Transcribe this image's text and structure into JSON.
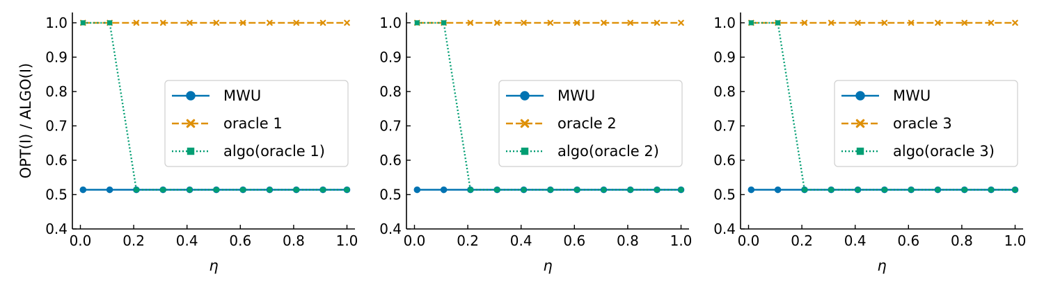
{
  "chart_data": [
    {
      "type": "line",
      "xlabel": "η",
      "ylabel": "OPT(I) / ALGO(I)",
      "xlim": [
        -0.03,
        1.03
      ],
      "ylim": [
        0.4,
        1.03
      ],
      "xticks": [
        0.0,
        0.2,
        0.4,
        0.6,
        0.8,
        1.0
      ],
      "xtick_labels": [
        "0.0",
        "0.2",
        "0.4",
        "0.6",
        "0.8",
        "1.0"
      ],
      "yticks": [
        0.4,
        0.5,
        0.6,
        0.7,
        0.8,
        0.9,
        1.0
      ],
      "ytick_labels": [
        "0.4",
        "0.5",
        "0.6",
        "0.7",
        "0.8",
        "0.9",
        "1.0"
      ],
      "grid": false,
      "legend_position": "center-right",
      "x": [
        0.01,
        0.11,
        0.21,
        0.31,
        0.41,
        0.51,
        0.61,
        0.71,
        0.81,
        0.91,
        1.0
      ],
      "series": [
        {
          "name": "MWU",
          "color": "#0173b2",
          "style": "solid",
          "marker": "circle",
          "values": [
            0.514,
            0.514,
            0.514,
            0.514,
            0.514,
            0.514,
            0.514,
            0.514,
            0.514,
            0.514,
            0.514
          ]
        },
        {
          "name": "oracle 1",
          "color": "#de8f05",
          "style": "dashed",
          "marker": "x",
          "values": [
            1.0,
            1.0,
            1.0,
            1.0,
            1.0,
            1.0,
            1.0,
            1.0,
            1.0,
            1.0,
            1.0
          ]
        },
        {
          "name": "algo(oracle 1)",
          "color": "#029e73",
          "style": "dotted",
          "marker": "square",
          "values": [
            1.0,
            1.0,
            0.514,
            0.514,
            0.514,
            0.514,
            0.514,
            0.514,
            0.514,
            0.514,
            0.514
          ]
        }
      ]
    },
    {
      "type": "line",
      "xlabel": "η",
      "ylabel": "",
      "xlim": [
        -0.03,
        1.03
      ],
      "ylim": [
        0.4,
        1.03
      ],
      "xticks": [
        0.0,
        0.2,
        0.4,
        0.6,
        0.8,
        1.0
      ],
      "xtick_labels": [
        "0.0",
        "0.2",
        "0.4",
        "0.6",
        "0.8",
        "1.0"
      ],
      "yticks": [
        0.4,
        0.5,
        0.6,
        0.7,
        0.8,
        0.9,
        1.0
      ],
      "ytick_labels": [
        "0.4",
        "0.5",
        "0.6",
        "0.7",
        "0.8",
        "0.9",
        "1.0"
      ],
      "grid": false,
      "legend_position": "center-right",
      "x": [
        0.01,
        0.11,
        0.21,
        0.31,
        0.41,
        0.51,
        0.61,
        0.71,
        0.81,
        0.91,
        1.0
      ],
      "series": [
        {
          "name": "MWU",
          "color": "#0173b2",
          "style": "solid",
          "marker": "circle",
          "values": [
            0.514,
            0.514,
            0.514,
            0.514,
            0.514,
            0.514,
            0.514,
            0.514,
            0.514,
            0.514,
            0.514
          ]
        },
        {
          "name": "oracle 2",
          "color": "#de8f05",
          "style": "dashed",
          "marker": "x",
          "values": [
            1.0,
            1.0,
            1.0,
            1.0,
            1.0,
            1.0,
            1.0,
            1.0,
            1.0,
            1.0,
            1.0
          ]
        },
        {
          "name": "algo(oracle 2)",
          "color": "#029e73",
          "style": "dotted",
          "marker": "square",
          "values": [
            1.0,
            1.0,
            0.514,
            0.514,
            0.514,
            0.514,
            0.514,
            0.514,
            0.514,
            0.514,
            0.514
          ]
        }
      ]
    },
    {
      "type": "line",
      "xlabel": "η",
      "ylabel": "",
      "xlim": [
        -0.03,
        1.03
      ],
      "ylim": [
        0.4,
        1.03
      ],
      "xticks": [
        0.0,
        0.2,
        0.4,
        0.6,
        0.8,
        1.0
      ],
      "xtick_labels": [
        "0.0",
        "0.2",
        "0.4",
        "0.6",
        "0.8",
        "1.0"
      ],
      "yticks": [
        0.4,
        0.5,
        0.6,
        0.7,
        0.8,
        0.9,
        1.0
      ],
      "ytick_labels": [
        "0.4",
        "0.5",
        "0.6",
        "0.7",
        "0.8",
        "0.9",
        "1.0"
      ],
      "grid": false,
      "legend_position": "center-right",
      "x": [
        0.01,
        0.11,
        0.21,
        0.31,
        0.41,
        0.51,
        0.61,
        0.71,
        0.81,
        0.91,
        1.0
      ],
      "series": [
        {
          "name": "MWU",
          "color": "#0173b2",
          "style": "solid",
          "marker": "circle",
          "values": [
            0.514,
            0.514,
            0.514,
            0.514,
            0.514,
            0.514,
            0.514,
            0.514,
            0.514,
            0.514,
            0.514
          ]
        },
        {
          "name": "oracle 3",
          "color": "#de8f05",
          "style": "dashed",
          "marker": "x",
          "values": [
            1.0,
            1.0,
            1.0,
            1.0,
            1.0,
            1.0,
            1.0,
            1.0,
            1.0,
            1.0,
            1.0
          ]
        },
        {
          "name": "algo(oracle 3)",
          "color": "#029e73",
          "style": "dotted",
          "marker": "square",
          "values": [
            1.0,
            1.0,
            0.514,
            0.514,
            0.514,
            0.514,
            0.514,
            0.514,
            0.514,
            0.514,
            0.514
          ]
        }
      ]
    }
  ]
}
